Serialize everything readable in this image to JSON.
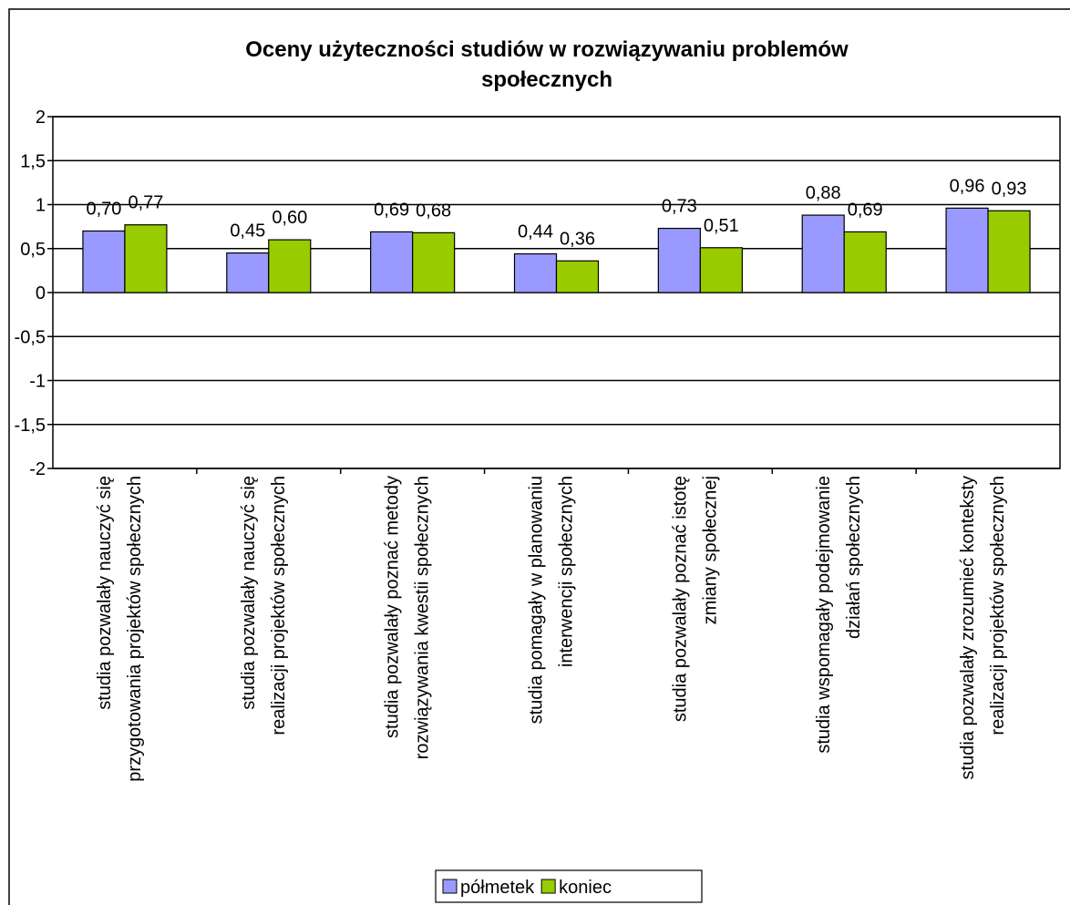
{
  "chart_data": {
    "type": "bar",
    "title": "Oceny użyteczności studiów w rozwiązywaniu problemów\nspołecznych",
    "categories": [
      "studia pozwalały nauczyć się\nprzygotowania projektów społecznych",
      "studia pozwalały nauczyć się\nrealizacji projektów społecznych",
      "studia pozwalały poznać metody\nrozwiązywania kwestii społecznych",
      "studia pomagały w planowaniu\ninterwencji społecznych",
      "studia pozwalały poznać istotę\nzmiany społecznej",
      "studia wspomagały podejmowanie\ndziałań społecznych",
      "studia pozwalały zrozumieć konteksty\nrealizacji projektów społecznych"
    ],
    "series": [
      {
        "name": "półmetek",
        "color": "#9999ff",
        "values": [
          0.7,
          0.45,
          0.69,
          0.44,
          0.73,
          0.88,
          0.96
        ],
        "value_labels": [
          "0,70",
          "0,45",
          "0,69",
          "0,44",
          "0,73",
          "0,88",
          "0,96"
        ]
      },
      {
        "name": "koniec",
        "color": "#99cc00",
        "values": [
          0.77,
          0.6,
          0.68,
          0.36,
          0.51,
          0.69,
          0.93
        ],
        "value_labels": [
          "0,77",
          "0,60",
          "0,68",
          "0,36",
          "0,51",
          "0,69",
          "0,93"
        ]
      }
    ],
    "ylim": [
      -2,
      2
    ],
    "yticks": [
      -2,
      {
        "value": -1.5,
        "label": "-1,5"
      },
      -1,
      {
        "value": -0.5,
        "label": "-0,5"
      },
      0,
      {
        "value": 0.5,
        "label": "0,5"
      },
      1,
      {
        "value": 1.5,
        "label": "1,5"
      },
      2
    ],
    "grid": true,
    "legend": "bottom"
  }
}
